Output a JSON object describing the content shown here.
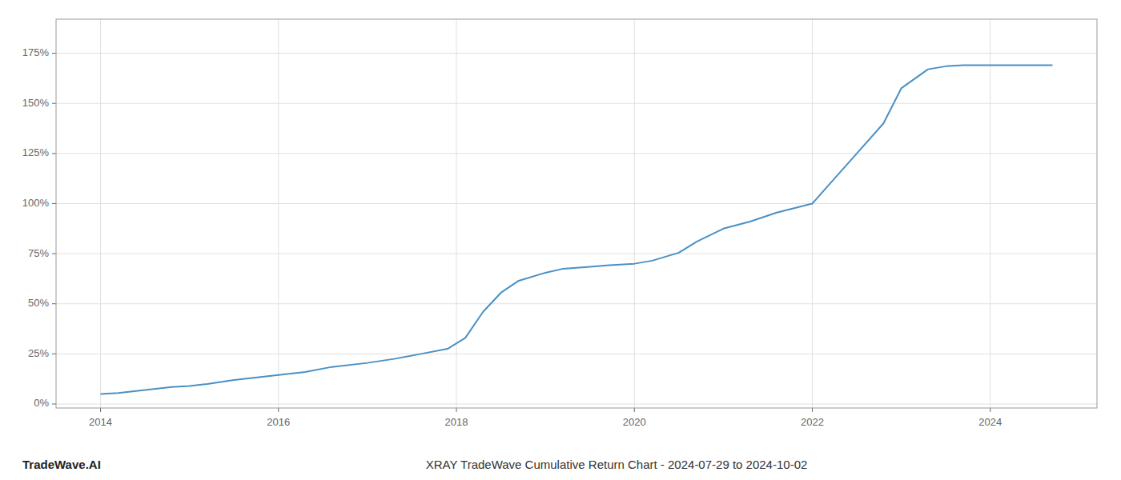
{
  "chart_data": {
    "type": "line",
    "title": "XRAY TradeWave Cumulative Return Chart - 2024-07-29 to 2024-10-02",
    "annotations": [
      "TradeWave.AI"
    ],
    "color": "#4a90c4",
    "grid": true,
    "xlim": [
      2013.5,
      2025.2
    ],
    "ylim": [
      -0.02,
      1.92
    ],
    "xticks": [
      2014,
      2016,
      2018,
      2020,
      2022,
      2024
    ],
    "yticks": [
      {
        "value": 0.0,
        "label": "0%"
      },
      {
        "value": 0.25,
        "label": "25%"
      },
      {
        "value": 0.5,
        "label": "50%"
      },
      {
        "value": 0.75,
        "label": "75%"
      },
      {
        "value": 1.0,
        "label": "100%"
      },
      {
        "value": 1.25,
        "label": "125%"
      },
      {
        "value": 1.5,
        "label": "150%"
      },
      {
        "value": 1.75,
        "label": "175%"
      }
    ],
    "x": [
      2014.0,
      2014.2,
      2014.4,
      2014.6,
      2014.8,
      2015.0,
      2015.2,
      2015.5,
      2015.8,
      2016.0,
      2016.3,
      2016.6,
      2017.0,
      2017.3,
      2017.6,
      2017.9,
      2018.1,
      2018.3,
      2018.5,
      2018.7,
      2019.0,
      2019.2,
      2019.5,
      2019.8,
      2020.0,
      2020.2,
      2020.5,
      2020.7,
      2021.0,
      2021.3,
      2021.6,
      2022.0,
      2022.2,
      2022.5,
      2022.8,
      2023.0,
      2023.3,
      2023.5,
      2023.7,
      2024.0,
      2024.3,
      2024.7
    ],
    "values": [
      0.05,
      0.055,
      0.065,
      0.075,
      0.085,
      0.09,
      0.1,
      0.12,
      0.135,
      0.145,
      0.16,
      0.185,
      0.205,
      0.225,
      0.25,
      0.275,
      0.33,
      0.46,
      0.555,
      0.615,
      0.655,
      0.675,
      0.685,
      0.695,
      0.7,
      0.715,
      0.755,
      0.81,
      0.875,
      0.91,
      0.955,
      1.0,
      1.1,
      1.25,
      1.4,
      1.575,
      1.67,
      1.685,
      1.69,
      1.69,
      1.69,
      1.69
    ]
  }
}
